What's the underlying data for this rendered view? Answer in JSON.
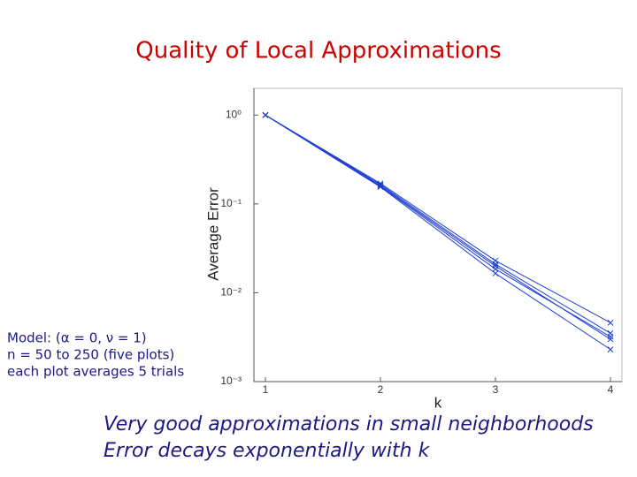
{
  "chart_data": {
    "type": "line",
    "title": "Quality of Local Approximations",
    "xlabel": "k",
    "ylabel": "Average Error",
    "annotations": [
      "Model: (α = 0, ν = 1)",
      "n = 50 to 250 (five plots)",
      "each plot averages 5 trials"
    ],
    "caption": [
      "Very good approximations in small neighborhoods",
      "Error decays exponentially with k"
    ],
    "x": [
      1,
      2,
      3,
      4
    ],
    "series": [
      {
        "color": "#1f3fd0",
        "values": [
          1,
          0.17,
          0.023,
          0.0046
        ]
      },
      {
        "color": "#1f3fd0",
        "values": [
          1,
          0.165,
          0.021,
          0.0035
        ]
      },
      {
        "color": "#1f3fd0",
        "values": [
          1,
          0.16,
          0.02,
          0.003
        ]
      },
      {
        "color": "#1f3fd0",
        "values": [
          1,
          0.158,
          0.0185,
          0.0032
        ]
      },
      {
        "color": "#1f3fd0",
        "values": [
          1,
          0.155,
          0.0165,
          0.0023
        ]
      }
    ],
    "xlim": [
      0.9,
      4.1
    ],
    "xticks": [
      1,
      2,
      3,
      4
    ],
    "ylim": [
      0.001,
      2
    ],
    "ylog": true,
    "yticks": [
      {
        "value": 1,
        "label": "10⁰"
      },
      {
        "value": 0.1,
        "label": "10⁻¹"
      },
      {
        "value": 0.01,
        "label": "10⁻²"
      },
      {
        "value": 0.001,
        "label": "10⁻³"
      }
    ],
    "grid": false
  }
}
